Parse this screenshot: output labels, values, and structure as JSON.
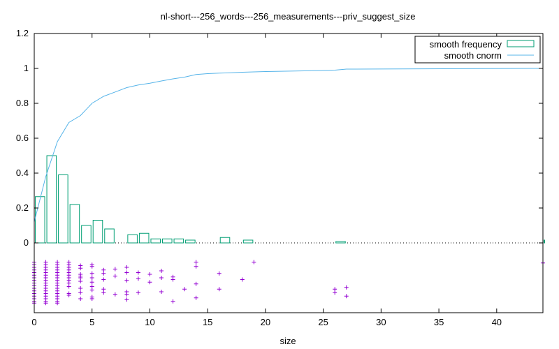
{
  "chart_data": {
    "type": "bar",
    "title": "nl-short---256_words---256_measurements---priv_suggest_size",
    "xlabel": "size",
    "ylabel": "",
    "xlim": [
      0,
      44
    ],
    "ylim": [
      0,
      1.2
    ],
    "x_ticks": [
      0,
      5,
      10,
      15,
      20,
      25,
      30,
      35,
      40
    ],
    "y_ticks": [
      0,
      0.2,
      0.4,
      0.6,
      0.8,
      1,
      1.2
    ],
    "y_tick_labels": [
      "0",
      "0.2",
      "0.4",
      "0.6",
      "0.8",
      "1",
      "1.2"
    ],
    "zero_line": "dotted",
    "legend_position": "top-right",
    "series": [
      {
        "name": "smooth frequency",
        "kind": "histogram",
        "color": "#009e73",
        "x": [
          0,
          1,
          2,
          3,
          4,
          5,
          6,
          8,
          9,
          10,
          11,
          12,
          13,
          16,
          18,
          26,
          44
        ],
        "values": [
          0.265,
          0.5,
          0.39,
          0.22,
          0.1,
          0.13,
          0.08,
          0.047,
          0.055,
          0.023,
          0.023,
          0.023,
          0.016,
          0.031,
          0.016,
          0.008,
          0.016
        ]
      },
      {
        "name": "smooth cnorm",
        "kind": "line",
        "color": "#56b4e9",
        "x": [
          0,
          1,
          2,
          3,
          4,
          5,
          6,
          7,
          8,
          9,
          10,
          11,
          12,
          13,
          14,
          15,
          16,
          17,
          18,
          19,
          20,
          25,
          26,
          27,
          44
        ],
        "values": [
          0.12,
          0.38,
          0.58,
          0.69,
          0.73,
          0.8,
          0.84,
          0.865,
          0.89,
          0.905,
          0.915,
          0.928,
          0.94,
          0.95,
          0.965,
          0.97,
          0.973,
          0.975,
          0.978,
          0.98,
          0.982,
          0.988,
          0.99,
          0.996,
          1.0
        ]
      },
      {
        "kind": "scatter",
        "marker": "+",
        "color": "#9400d3",
        "points": [
          {
            "x": 0,
            "y": -0.11
          },
          {
            "x": 0,
            "y": -0.125
          },
          {
            "x": 0,
            "y": -0.14
          },
          {
            "x": 0,
            "y": -0.155
          },
          {
            "x": 0,
            "y": -0.17
          },
          {
            "x": 0,
            "y": -0.185
          },
          {
            "x": 0,
            "y": -0.2
          },
          {
            "x": 0,
            "y": -0.215
          },
          {
            "x": 0,
            "y": -0.23
          },
          {
            "x": 0,
            "y": -0.245
          },
          {
            "x": 0,
            "y": -0.26
          },
          {
            "x": 0,
            "y": -0.275
          },
          {
            "x": 0,
            "y": -0.29
          },
          {
            "x": 0,
            "y": -0.305
          },
          {
            "x": 0,
            "y": -0.32
          },
          {
            "x": 0,
            "y": -0.335
          },
          {
            "x": 0,
            "y": -0.345
          },
          {
            "x": 1,
            "y": -0.11
          },
          {
            "x": 1,
            "y": -0.125
          },
          {
            "x": 1,
            "y": -0.14
          },
          {
            "x": 1,
            "y": -0.155
          },
          {
            "x": 1,
            "y": -0.17
          },
          {
            "x": 1,
            "y": -0.185
          },
          {
            "x": 1,
            "y": -0.2
          },
          {
            "x": 1,
            "y": -0.215
          },
          {
            "x": 1,
            "y": -0.23
          },
          {
            "x": 1,
            "y": -0.245
          },
          {
            "x": 1,
            "y": -0.26
          },
          {
            "x": 1,
            "y": -0.275
          },
          {
            "x": 1,
            "y": -0.29
          },
          {
            "x": 1,
            "y": -0.305
          },
          {
            "x": 1,
            "y": -0.32
          },
          {
            "x": 1,
            "y": -0.335
          },
          {
            "x": 1,
            "y": -0.345
          },
          {
            "x": 2,
            "y": -0.11
          },
          {
            "x": 2,
            "y": -0.125
          },
          {
            "x": 2,
            "y": -0.14
          },
          {
            "x": 2,
            "y": -0.155
          },
          {
            "x": 2,
            "y": -0.17
          },
          {
            "x": 2,
            "y": -0.185
          },
          {
            "x": 2,
            "y": -0.2
          },
          {
            "x": 2,
            "y": -0.215
          },
          {
            "x": 2,
            "y": -0.23
          },
          {
            "x": 2,
            "y": -0.245
          },
          {
            "x": 2,
            "y": -0.26
          },
          {
            "x": 2,
            "y": -0.275
          },
          {
            "x": 2,
            "y": -0.29
          },
          {
            "x": 2,
            "y": -0.305
          },
          {
            "x": 2,
            "y": -0.32
          },
          {
            "x": 2,
            "y": -0.335
          },
          {
            "x": 2,
            "y": -0.345
          },
          {
            "x": 3,
            "y": -0.11
          },
          {
            "x": 3,
            "y": -0.125
          },
          {
            "x": 3,
            "y": -0.14
          },
          {
            "x": 3,
            "y": -0.155
          },
          {
            "x": 3,
            "y": -0.17
          },
          {
            "x": 3,
            "y": -0.185
          },
          {
            "x": 3,
            "y": -0.2
          },
          {
            "x": 3,
            "y": -0.215
          },
          {
            "x": 3,
            "y": -0.23
          },
          {
            "x": 3,
            "y": -0.25
          },
          {
            "x": 3,
            "y": -0.29
          },
          {
            "x": 3,
            "y": -0.3
          },
          {
            "x": 4,
            "y": -0.13
          },
          {
            "x": 4,
            "y": -0.145
          },
          {
            "x": 4,
            "y": -0.18
          },
          {
            "x": 4,
            "y": -0.19
          },
          {
            "x": 4,
            "y": -0.2
          },
          {
            "x": 4,
            "y": -0.22
          },
          {
            "x": 4,
            "y": -0.26
          },
          {
            "x": 4,
            "y": -0.285
          },
          {
            "x": 4,
            "y": -0.32
          },
          {
            "x": 5,
            "y": -0.125
          },
          {
            "x": 5,
            "y": -0.135
          },
          {
            "x": 5,
            "y": -0.175
          },
          {
            "x": 5,
            "y": -0.2
          },
          {
            "x": 5,
            "y": -0.225
          },
          {
            "x": 5,
            "y": -0.25
          },
          {
            "x": 5,
            "y": -0.27
          },
          {
            "x": 5,
            "y": -0.31
          },
          {
            "x": 5,
            "y": -0.32
          },
          {
            "x": 6,
            "y": -0.155
          },
          {
            "x": 6,
            "y": -0.175
          },
          {
            "x": 6,
            "y": -0.21
          },
          {
            "x": 6,
            "y": -0.265
          },
          {
            "x": 6,
            "y": -0.285
          },
          {
            "x": 7,
            "y": -0.15
          },
          {
            "x": 7,
            "y": -0.19
          },
          {
            "x": 7,
            "y": -0.295
          },
          {
            "x": 8,
            "y": -0.14
          },
          {
            "x": 8,
            "y": -0.17
          },
          {
            "x": 8,
            "y": -0.215
          },
          {
            "x": 8,
            "y": -0.28
          },
          {
            "x": 8,
            "y": -0.295
          },
          {
            "x": 8,
            "y": -0.325
          },
          {
            "x": 9,
            "y": -0.17
          },
          {
            "x": 9,
            "y": -0.205
          },
          {
            "x": 9,
            "y": -0.285
          },
          {
            "x": 10,
            "y": -0.18
          },
          {
            "x": 10,
            "y": -0.225
          },
          {
            "x": 11,
            "y": -0.16
          },
          {
            "x": 11,
            "y": -0.2
          },
          {
            "x": 11,
            "y": -0.28
          },
          {
            "x": 12,
            "y": -0.195
          },
          {
            "x": 12,
            "y": -0.21
          },
          {
            "x": 12,
            "y": -0.335
          },
          {
            "x": 13,
            "y": -0.265
          },
          {
            "x": 14,
            "y": -0.11
          },
          {
            "x": 14,
            "y": -0.135
          },
          {
            "x": 14,
            "y": -0.235
          },
          {
            "x": 14,
            "y": -0.315
          },
          {
            "x": 16,
            "y": -0.175
          },
          {
            "x": 16,
            "y": -0.265
          },
          {
            "x": 18,
            "y": -0.21
          },
          {
            "x": 19,
            "y": -0.11
          },
          {
            "x": 26,
            "y": -0.265
          },
          {
            "x": 26,
            "y": -0.285
          },
          {
            "x": 27,
            "y": -0.255
          },
          {
            "x": 27,
            "y": -0.305
          },
          {
            "x": 44,
            "y": -0.115
          }
        ]
      }
    ]
  }
}
